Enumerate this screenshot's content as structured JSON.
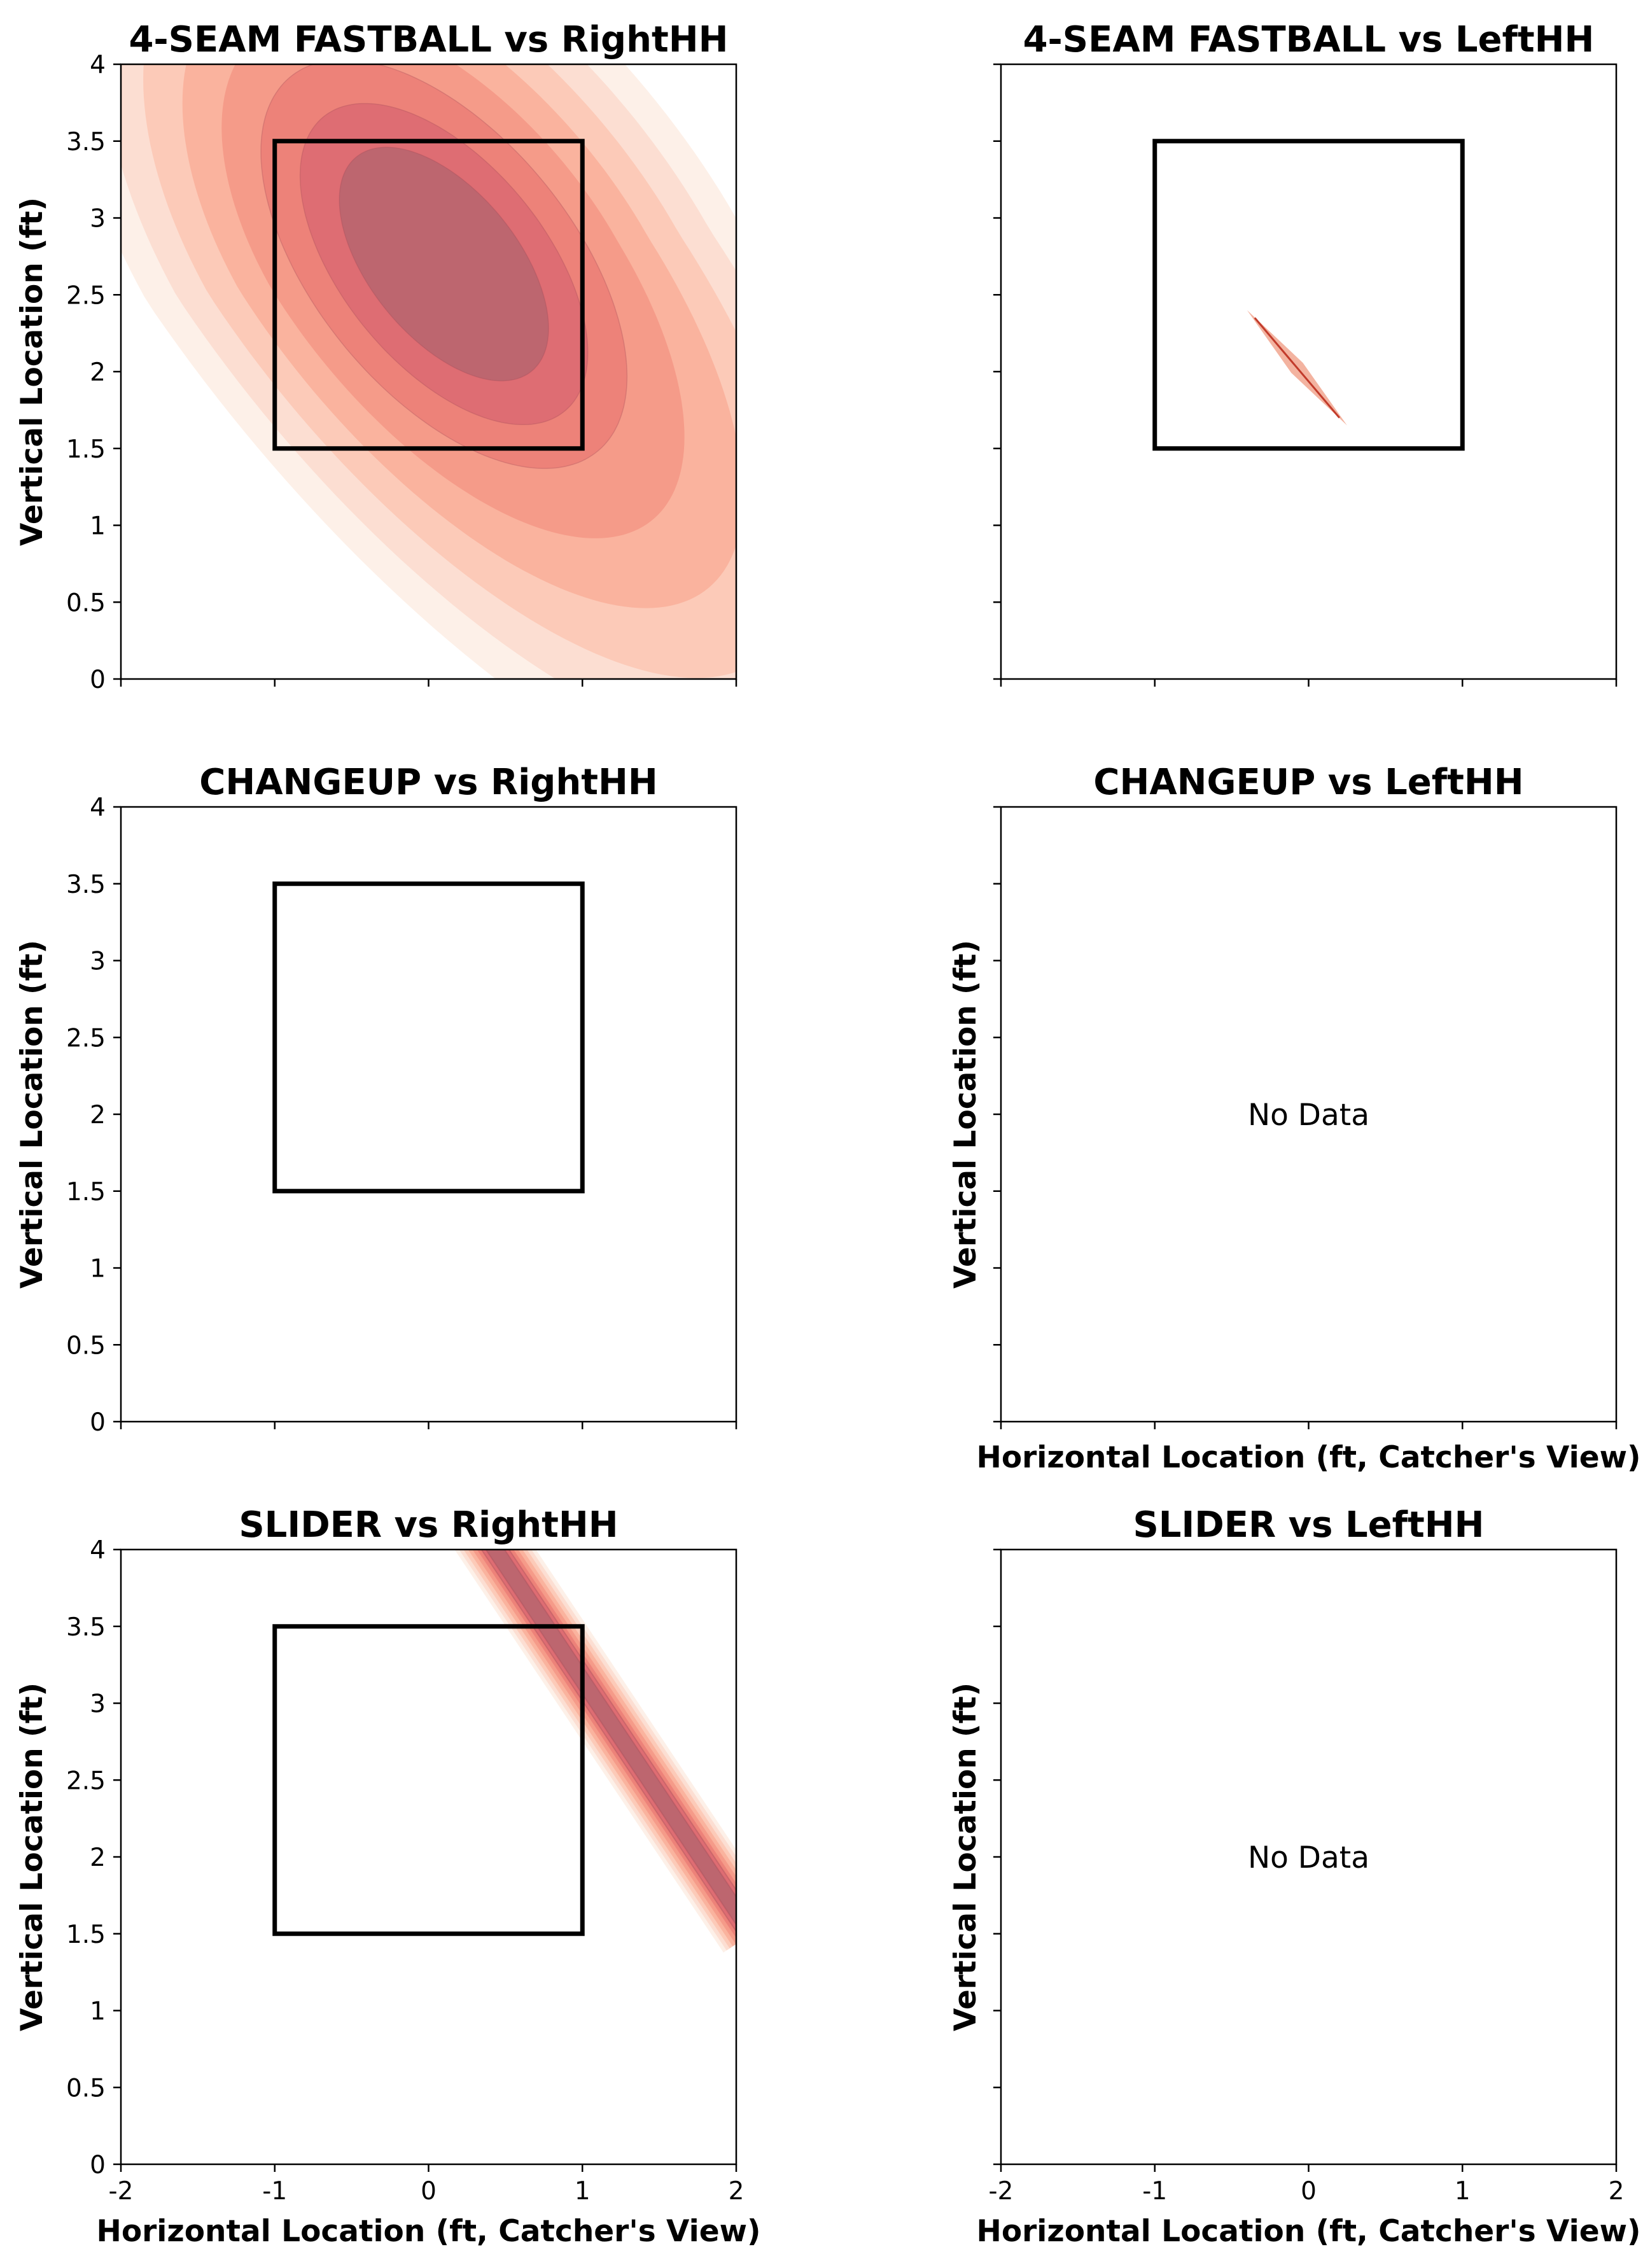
{
  "figure": {
    "background": "#ffffff"
  },
  "colors": {
    "kde": [
      "#fdeee6",
      "#fcdccf",
      "#fcc8b5",
      "#f9b09b",
      "#f49886",
      "#ec7f78",
      "#db6a72",
      "#b9656f"
    ],
    "kde_line": "#c2185b",
    "zone": "#000000"
  },
  "chart_data": [
    {
      "type": "heatmap",
      "title": "4-SEAM FASTBALL vs RightHH",
      "xlabel": "",
      "ylabel": "Vertical Location (ft)",
      "xlim": [
        -2,
        2
      ],
      "ylim": [
        0,
        4
      ],
      "x_ticks": [
        "-2",
        "-1",
        "0",
        "1",
        "2"
      ],
      "x_tick_labels_shown": false,
      "y_ticks": [
        "0",
        "0.5",
        "1",
        "1.5",
        "2",
        "2.5",
        "3",
        "3.5",
        "4"
      ],
      "y_tick_labels_shown": true,
      "strike_zone": {
        "x": [
          -1,
          1
        ],
        "y": [
          1.5,
          3.5
        ]
      },
      "density": {
        "kind": "blob",
        "center": [
          0.1,
          2.7
        ],
        "sx": 0.85,
        "sy": 0.95,
        "rho": -0.55,
        "tail": [
          0.9,
          1.7,
          1.0,
          0.8
        ]
      },
      "no_data_text": ""
    },
    {
      "type": "heatmap",
      "title": "4-SEAM FASTBALL vs LeftHH",
      "xlabel": "",
      "ylabel": "",
      "xlim": [
        -2,
        2
      ],
      "ylim": [
        0,
        4
      ],
      "x_ticks": [
        "-2",
        "-1",
        "0",
        "1",
        "2"
      ],
      "x_tick_labels_shown": false,
      "y_ticks": [
        "0",
        "0.5",
        "1",
        "1.5",
        "2",
        "2.5",
        "3",
        "3.5",
        "4"
      ],
      "y_tick_labels_shown": false,
      "strike_zone": {
        "x": [
          -1,
          1
        ],
        "y": [
          1.5,
          3.5
        ]
      },
      "density": {
        "kind": "sliver",
        "from": [
          -0.4,
          2.4
        ],
        "to": [
          0.25,
          1.65
        ],
        "width": 0.05
      },
      "no_data_text": ""
    },
    {
      "type": "heatmap",
      "title": "CHANGEUP vs RightHH",
      "xlabel": "",
      "ylabel": "Vertical Location (ft)",
      "xlim": [
        -2,
        2
      ],
      "ylim": [
        0,
        4
      ],
      "x_ticks": [
        "-2",
        "-1",
        "0",
        "1",
        "2"
      ],
      "x_tick_labels_shown": false,
      "y_ticks": [
        "0",
        "0.5",
        "1",
        "1.5",
        "2",
        "2.5",
        "3",
        "3.5",
        "4"
      ],
      "y_tick_labels_shown": true,
      "strike_zone": {
        "x": [
          -1,
          1
        ],
        "y": [
          1.5,
          3.5
        ]
      },
      "density": null,
      "no_data_text": ""
    },
    {
      "type": "heatmap",
      "title": "CHANGEUP vs LeftHH",
      "xlabel": "Horizontal Location (ft, Catcher's View)",
      "ylabel": "Vertical Location (ft)",
      "xlim": [
        -2,
        2
      ],
      "ylim": [
        0,
        4
      ],
      "x_ticks": [
        "-2",
        "-1",
        "0",
        "1",
        "2"
      ],
      "x_tick_labels_shown": false,
      "y_ticks": [
        "0",
        "0.5",
        "1",
        "1.5",
        "2",
        "2.5",
        "3",
        "3.5",
        "4"
      ],
      "y_tick_labels_shown": false,
      "strike_zone": null,
      "density": null,
      "no_data_text": "No Data"
    },
    {
      "type": "heatmap",
      "title": "SLIDER vs RightHH",
      "xlabel": "Horizontal Location (ft, Catcher's View)",
      "ylabel": "Vertical Location (ft)",
      "xlim": [
        -2,
        2
      ],
      "ylim": [
        0,
        4
      ],
      "x_ticks": [
        "-2",
        "-1",
        "0",
        "1",
        "2"
      ],
      "x_tick_labels_shown": true,
      "y_ticks": [
        "0",
        "0.5",
        "1",
        "1.5",
        "2",
        "2.5",
        "3",
        "3.5",
        "4"
      ],
      "y_tick_labels_shown": true,
      "strike_zone": {
        "x": [
          -1,
          1
        ],
        "y": [
          1.5,
          3.5
        ]
      },
      "density": {
        "kind": "band",
        "from": [
          0.3,
          4.2
        ],
        "to": [
          2.1,
          1.5
        ],
        "width": 0.22
      },
      "no_data_text": ""
    },
    {
      "type": "heatmap",
      "title": "SLIDER vs LeftHH",
      "xlabel": "Horizontal Location (ft, Catcher's View)",
      "ylabel": "Vertical Location (ft)",
      "xlim": [
        -2,
        2
      ],
      "ylim": [
        0,
        4
      ],
      "x_ticks": [
        "-2",
        "-1",
        "0",
        "1",
        "2"
      ],
      "x_tick_labels_shown": true,
      "y_ticks": [
        "0",
        "0.5",
        "1",
        "1.5",
        "2",
        "2.5",
        "3",
        "3.5",
        "4"
      ],
      "y_tick_labels_shown": false,
      "strike_zone": null,
      "density": null,
      "no_data_text": "No Data"
    }
  ]
}
